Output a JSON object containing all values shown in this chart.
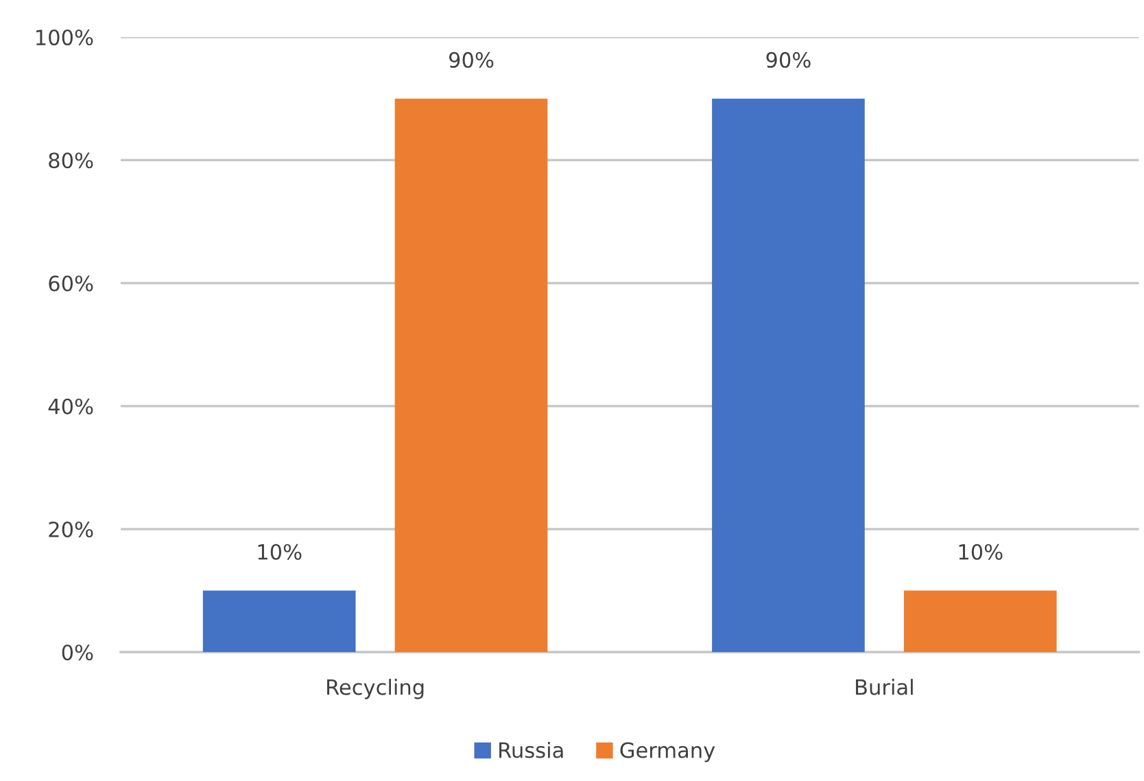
{
  "chart_data": {
    "type": "bar",
    "categories": [
      "Recycling",
      "Burial"
    ],
    "series": [
      {
        "name": "Russia",
        "color": "#4472c4",
        "values": [
          10,
          90
        ],
        "value_labels": [
          "10%",
          "90%"
        ]
      },
      {
        "name": "Germany",
        "color": "#ed7d31",
        "values": [
          90,
          10
        ],
        "value_labels": [
          "90%",
          "10%"
        ]
      }
    ],
    "ylim": [
      0,
      100
    ],
    "yticks": [
      {
        "value": 0,
        "label": "0%"
      },
      {
        "value": 20,
        "label": "20%"
      },
      {
        "value": 40,
        "label": "40%"
      },
      {
        "value": 60,
        "label": "60%"
      },
      {
        "value": 80,
        "label": "80%"
      },
      {
        "value": 100,
        "label": "100%"
      }
    ],
    "grid": "y",
    "legend": "bottom"
  }
}
